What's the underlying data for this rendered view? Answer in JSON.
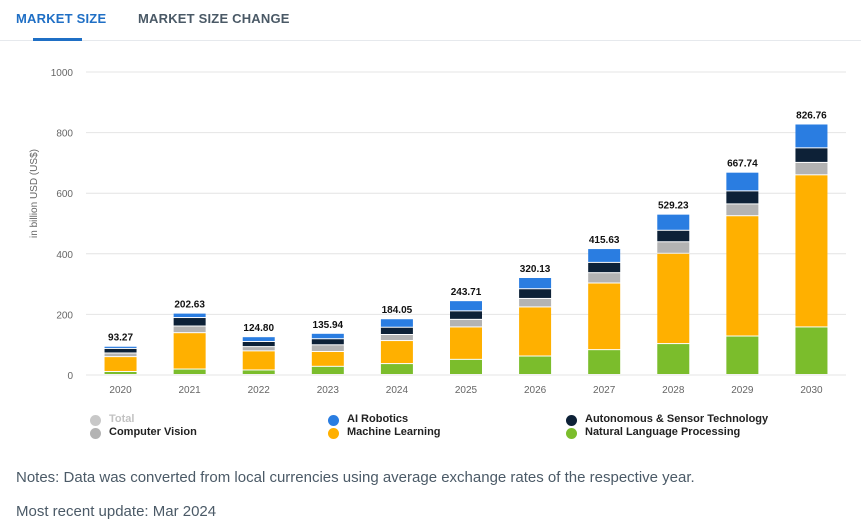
{
  "tabs": [
    {
      "label": "MARKET SIZE"
    },
    {
      "label": "MARKET SIZE CHANGE"
    }
  ],
  "notes": "Notes: Data was converted from local currencies using average exchange rates of the respective year.",
  "update": "Most recent update: Mar 2024",
  "legend": [
    {
      "label": "Total",
      "color": "#c8c8c8",
      "disabled": true
    },
    {
      "label": "AI Robotics",
      "color": "#2a7de1"
    },
    {
      "label": "Autonomous & Sensor Technology",
      "color": "#0d2137"
    },
    {
      "label": "Computer Vision",
      "color": "#b3b3b3"
    },
    {
      "label": "Machine Learning",
      "color": "#ffb000"
    },
    {
      "label": "Natural Language Processing",
      "color": "#7bbd2c"
    }
  ],
  "chart_data": {
    "type": "bar",
    "stacked": true,
    "ylabel": "in billion USD (US$)",
    "ylim": [
      0,
      1000
    ],
    "yticks": [
      0,
      200,
      400,
      600,
      800,
      1000
    ],
    "grid": true,
    "legend_position": "bottom",
    "categories": [
      "2020",
      "2021",
      "2022",
      "2023",
      "2024",
      "2025",
      "2026",
      "2027",
      "2028",
      "2029",
      "2030"
    ],
    "totals": [
      "93.27",
      "202.63",
      "124.80",
      "135.94",
      "184.05",
      "243.71",
      "320.13",
      "415.63",
      "529.23",
      "667.74",
      "826.76"
    ],
    "series": [
      {
        "name": "Natural Language Processing",
        "color": "#7bbd2c",
        "values": [
          10,
          18,
          15,
          27,
          36,
          50,
          61,
          82,
          102,
          127,
          157
        ]
      },
      {
        "name": "Machine Learning",
        "color": "#ffb000",
        "values": [
          49,
          120,
          63,
          49,
          76,
          107,
          162,
          220,
          298,
          397,
          502
        ]
      },
      {
        "name": "Computer Vision",
        "color": "#b3b3b3",
        "values": [
          12,
          22,
          14,
          22,
          20,
          25,
          28,
          34,
          38,
          39,
          41
        ]
      },
      {
        "name": "Autonomous & Sensor Technology",
        "color": "#0d2137",
        "values": [
          15,
          28,
          17,
          20,
          24,
          28,
          32,
          34,
          38,
          43,
          48
        ]
      },
      {
        "name": "AI Robotics",
        "color": "#2a7de1",
        "values": [
          7.27,
          14.63,
          15.8,
          17.94,
          28.05,
          33.71,
          37.13,
          45.63,
          53.23,
          61.74,
          78.76
        ]
      }
    ]
  }
}
